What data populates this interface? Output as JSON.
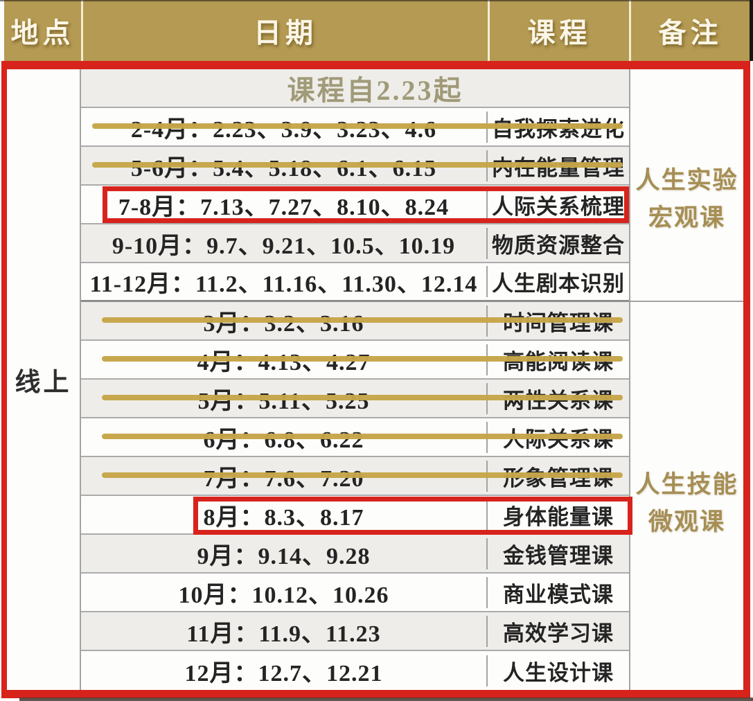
{
  "header": {
    "columns": [
      "地点",
      "日期",
      "课程",
      "备注"
    ]
  },
  "location": "线上",
  "banner": "课程自2.23起",
  "groups": [
    {
      "note_lines": [
        "人生实验",
        "宏观课"
      ],
      "rows": [
        {
          "date": "2-4月：2.23、3.9、3.23、4.6",
          "course": "自我探索进化",
          "status": "struck"
        },
        {
          "date": "5-6月：5.4、5.18、6.1、6.15",
          "course": "内在能量管理",
          "status": "struck"
        },
        {
          "date": "7-8月：7.13、7.27、8.10、8.24",
          "course": "人际关系梳理",
          "status": "highlighted"
        },
        {
          "date": "9-10月：9.7、9.21、10.5、10.19",
          "course": "物质资源整合",
          "status": "normal"
        },
        {
          "date": "11-12月：11.2、11.16、11.30、12.14",
          "course": "人生剧本识别",
          "status": "normal"
        }
      ]
    },
    {
      "note_lines": [
        "人生技能",
        "微观课"
      ],
      "rows": [
        {
          "date": "3月：3.2、3.16",
          "course": "时间管理课",
          "status": "struck"
        },
        {
          "date": "4月：4.13、4.27",
          "course": "高能阅读课",
          "status": "struck"
        },
        {
          "date": "5月：5.11、5.25",
          "course": "两性关系课",
          "status": "struck"
        },
        {
          "date": "6月：6.8、6.22",
          "course": "人际关系课",
          "status": "struck"
        },
        {
          "date": "7月：7.6、7.20",
          "course": "形象管理课",
          "status": "struck"
        },
        {
          "date": "8月：8.3、8.17",
          "course": "身体能量课",
          "status": "highlighted"
        },
        {
          "date": "9月：9.14、9.28",
          "course": "金钱管理课",
          "status": "normal"
        },
        {
          "date": "10月：10.12、10.26",
          "course": "商业模式课",
          "status": "normal"
        },
        {
          "date": "11月：11.9、11.23",
          "course": "高效学习课",
          "status": "normal"
        },
        {
          "date": "12月：12.7、12.21",
          "course": "人生设计课",
          "status": "normal"
        }
      ]
    }
  ],
  "colors": {
    "header_gold": "#b49a52",
    "strike_gold": "#c6a548",
    "highlight_red": "#d7231c",
    "note_gold": "#a68e54"
  }
}
